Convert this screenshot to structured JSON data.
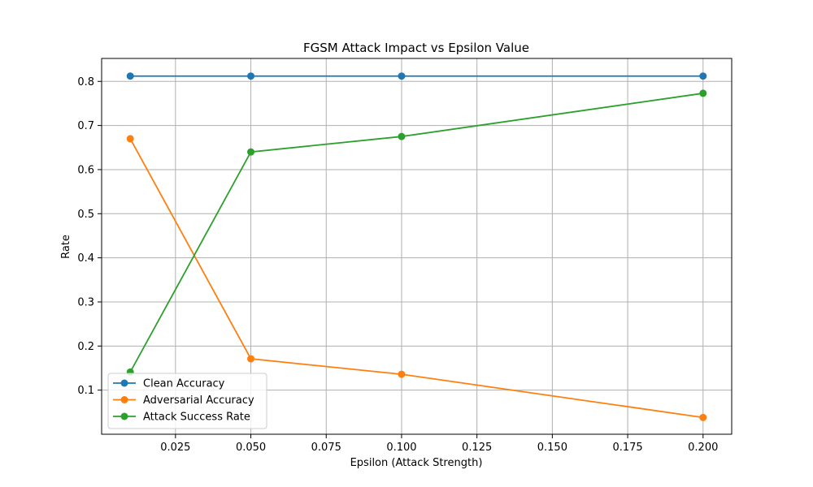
{
  "chart_data": {
    "type": "line",
    "title": "FGSM Attack Impact vs Epsilon Value",
    "xlabel": "Epsilon (Attack Strength)",
    "ylabel": "Rate",
    "x": [
      0.01,
      0.05,
      0.1,
      0.2
    ],
    "xlim": [
      0.0005,
      0.2095
    ],
    "ylim": [
      0.0,
      0.852
    ],
    "x_ticks": [
      "0.025",
      "0.050",
      "0.075",
      "0.100",
      "0.125",
      "0.150",
      "0.175",
      "0.200"
    ],
    "y_ticks": [
      "0.1",
      "0.2",
      "0.3",
      "0.4",
      "0.5",
      "0.6",
      "0.7",
      "0.8"
    ],
    "grid": true,
    "legend_position": "lower-left",
    "series": [
      {
        "name": "Clean Accuracy",
        "color": "#1f77b4",
        "values": [
          0.812,
          0.812,
          0.812,
          0.812
        ]
      },
      {
        "name": "Adversarial Accuracy",
        "color": "#ff7f0e",
        "values": [
          0.67,
          0.171,
          0.136,
          0.038
        ]
      },
      {
        "name": "Attack Success Rate",
        "color": "#2ca02c",
        "values": [
          0.141,
          0.64,
          0.675,
          0.773
        ]
      }
    ]
  }
}
